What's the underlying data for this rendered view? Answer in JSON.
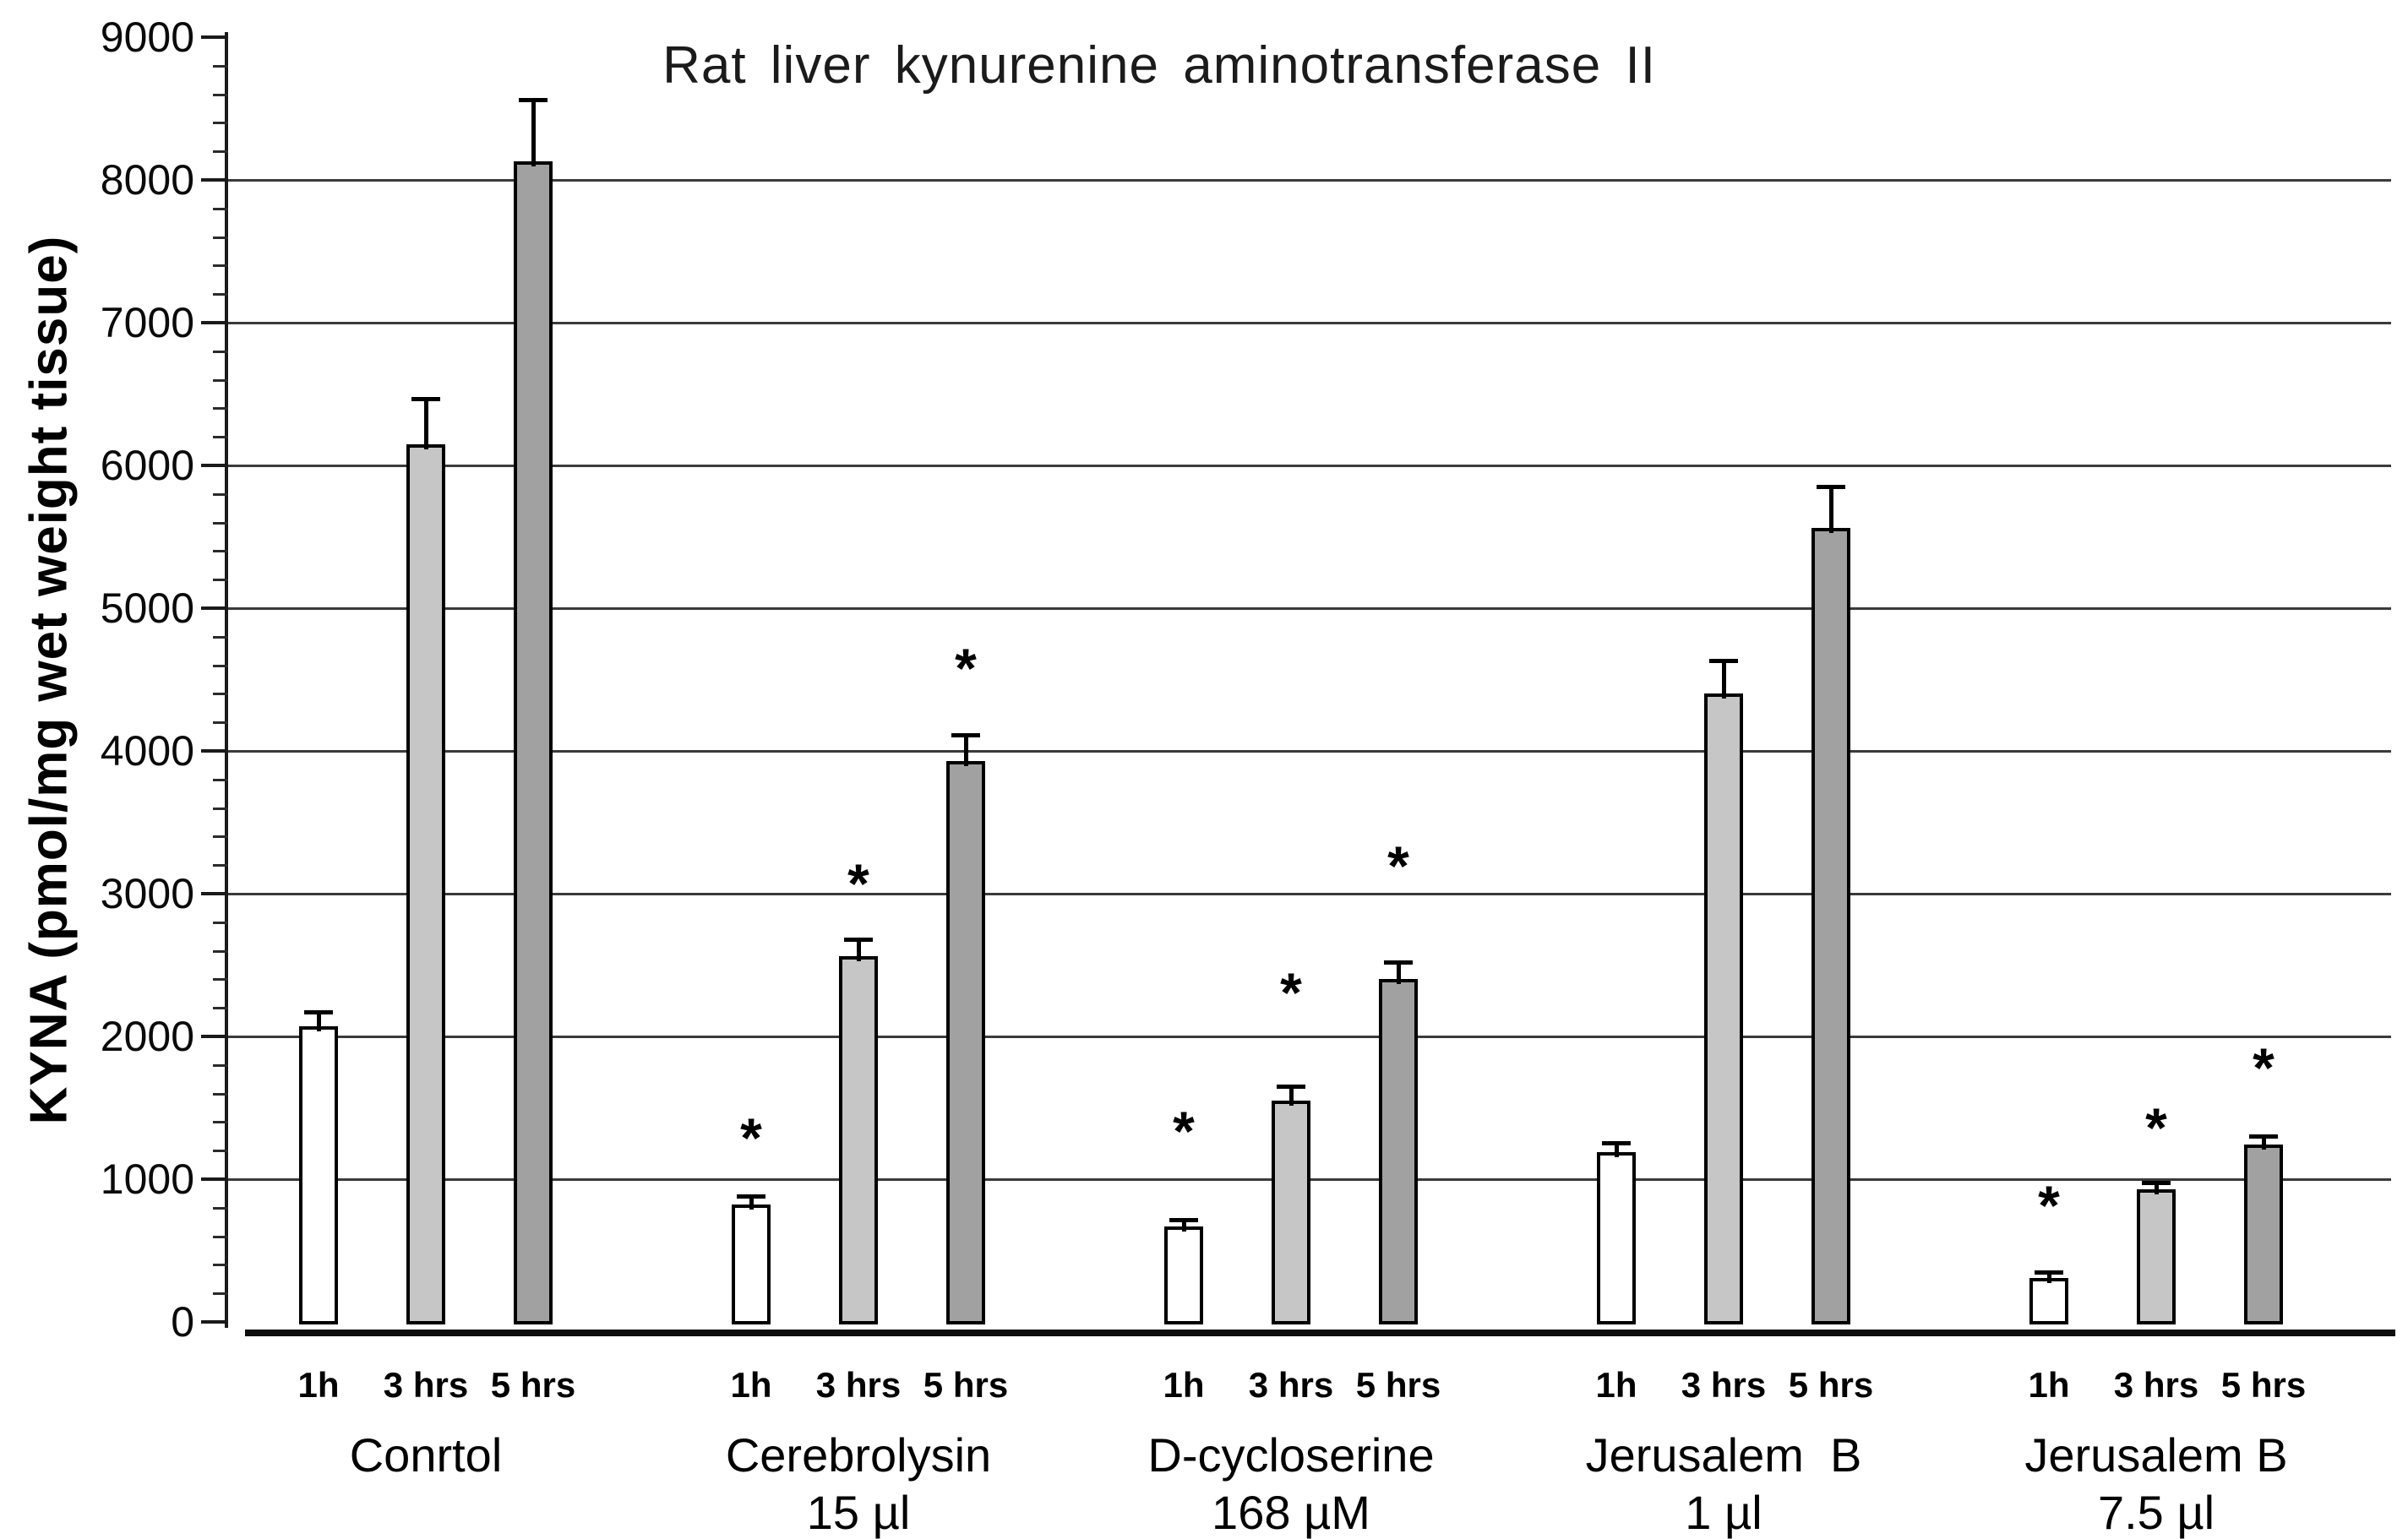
{
  "page": {
    "background": "#ffffff"
  },
  "chart_data": {
    "type": "bar",
    "title": "Rat liver kynurenine aminotransferase II",
    "ylabel": "KYNA (pmol/mg wet weight tissue)",
    "ylim": [
      0,
      9000
    ],
    "ytick_step": 1000,
    "yminor_step": 200,
    "grid": "horizontal-majors-1000-8000",
    "legend": "none",
    "significance_marker": "*",
    "time_labels": [
      "1h",
      "3 hrs",
      "5 hrs"
    ],
    "bar_colors": [
      "#ffffff",
      "#c6c6c6",
      "#a1a1a1"
    ],
    "gridline_color": "#3a3a3a",
    "groups": [
      {
        "label_lines": [
          "Conrtol"
        ],
        "bars": [
          {
            "time": "1h",
            "value": 2070,
            "err_top": 2170,
            "star_y": null
          },
          {
            "time": "3 hrs",
            "value": 6150,
            "err_top": 6470,
            "star_y": null
          },
          {
            "time": "5 hrs",
            "value": 8130,
            "err_top": 8560,
            "star_y": null
          }
        ]
      },
      {
        "label_lines": [
          "Cerebrolysin",
          "15 µl"
        ],
        "bars": [
          {
            "time": "1h",
            "value": 820,
            "err_top": 880,
            "star_y": 1300
          },
          {
            "time": "3 hrs",
            "value": 2560,
            "err_top": 2680,
            "star_y": 3080
          },
          {
            "time": "5 hrs",
            "value": 3930,
            "err_top": 4110,
            "star_y": 4590
          }
        ]
      },
      {
        "label_lines": [
          "D-cycloserine",
          "168 µM"
        ],
        "bars": [
          {
            "time": "1h",
            "value": 670,
            "err_top": 715,
            "star_y": 1350
          },
          {
            "time": "3 hrs",
            "value": 1550,
            "err_top": 1650,
            "star_y": 2320
          },
          {
            "time": "5 hrs",
            "value": 2400,
            "err_top": 2520,
            "star_y": 3210
          }
        ]
      },
      {
        "label_lines": [
          "Jerusalem  B",
          "1 µl"
        ],
        "bars": [
          {
            "time": "1h",
            "value": 1190,
            "err_top": 1255,
            "star_y": null
          },
          {
            "time": "3 hrs",
            "value": 4400,
            "err_top": 4635,
            "star_y": null
          },
          {
            "time": "5 hrs",
            "value": 5560,
            "err_top": 5850,
            "star_y": null
          }
        ]
      },
      {
        "label_lines": [
          "Jerusalem B",
          "7.5 µl"
        ],
        "bars": [
          {
            "time": "1h",
            "value": 310,
            "err_top": 350,
            "star_y": 830
          },
          {
            "time": "3 hrs",
            "value": 930,
            "err_top": 975,
            "star_y": 1370
          },
          {
            "time": "5 hrs",
            "value": 1240,
            "err_top": 1300,
            "star_y": 1790
          }
        ]
      }
    ]
  }
}
